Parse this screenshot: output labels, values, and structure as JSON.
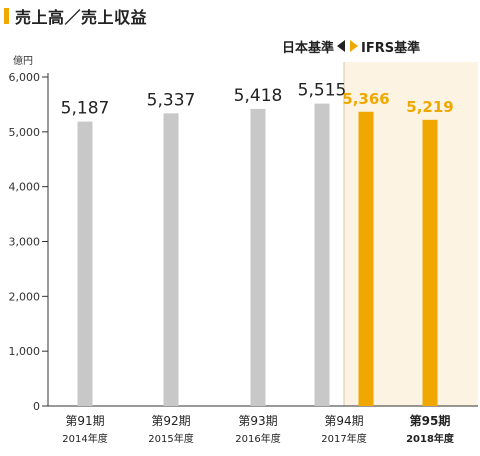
{
  "title": "売上高／売上収益",
  "unit_label": "億円",
  "standard_jp": "日本基準",
  "standard_ifrs": "IFRS基準",
  "colors": {
    "jp_bar": "#c8c8c8",
    "ifrs_bar": "#f0a800",
    "ifrs_region": "#fdf3e2",
    "axis": "#333333",
    "title_marker": "#f0a800"
  },
  "chart_data": {
    "type": "bar",
    "title": "売上高／売上収益",
    "ylabel": "億円",
    "ylim": [
      0,
      6000
    ],
    "yticks": [
      "0",
      "1,000",
      "2,000",
      "3,000",
      "4,000",
      "5,000",
      "6,000"
    ],
    "ytick_values": [
      0,
      1000,
      2000,
      3000,
      4000,
      5000,
      6000
    ],
    "categories": [
      {
        "period": "第91期",
        "year": "2014年度"
      },
      {
        "period": "第92期",
        "year": "2015年度"
      },
      {
        "period": "第93期",
        "year": "2016年度"
      },
      {
        "period": "第94期",
        "year": "2017年度"
      },
      {
        "period": "第95期",
        "year": "2018年度"
      }
    ],
    "series": [
      {
        "name": "日本基準",
        "values": [
          5187,
          5337,
          5418,
          5515,
          null
        ],
        "labels": [
          "5,187",
          "5,337",
          "5,418",
          "5,515",
          ""
        ]
      },
      {
        "name": "IFRS基準",
        "values": [
          null,
          null,
          null,
          5366,
          5219
        ],
        "labels": [
          "",
          "",
          "",
          "5,366",
          "5,219"
        ]
      }
    ]
  }
}
